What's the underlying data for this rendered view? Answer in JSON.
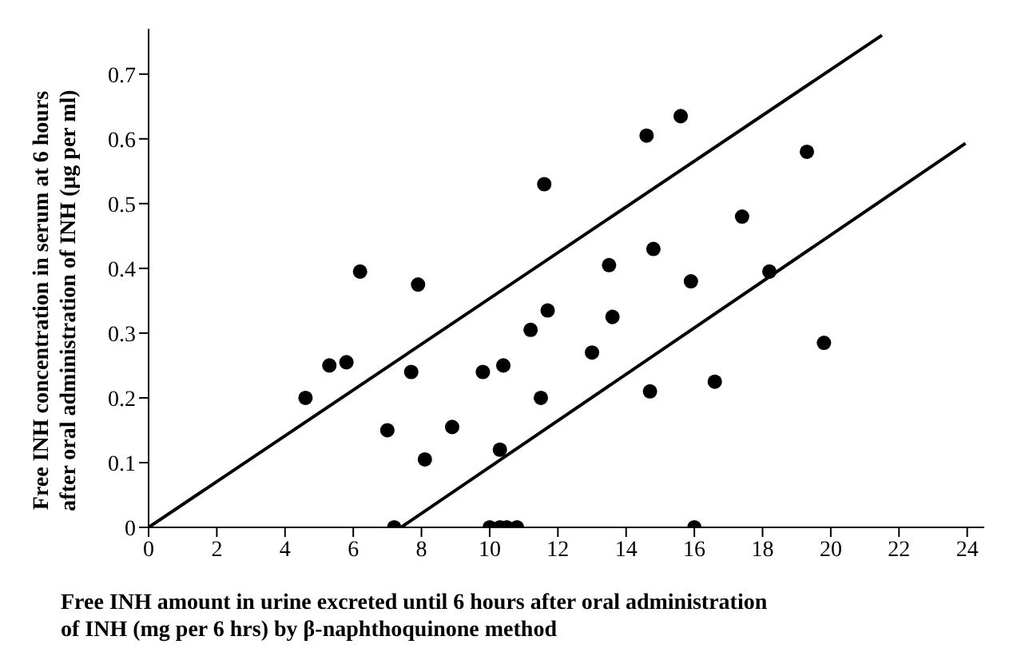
{
  "chart_data": {
    "type": "scatter",
    "xlabel": "Free INH amount in urine excreted until 6 hours after oral administration\nof INH (mg per 6 hrs)  by  β-naphthoquinone method",
    "ylabel": "Free INH concentration in serum at 6 hours\nafter oral administration of INH (μg per ml)",
    "xlim": [
      0,
      24.5
    ],
    "xticks": [
      0,
      2,
      4,
      6,
      8,
      10,
      12,
      14,
      16,
      18,
      20,
      22,
      24
    ],
    "ylim": [
      0,
      0.77
    ],
    "yticks": [
      0,
      0.1,
      0.2,
      0.3,
      0.4,
      0.5,
      0.6,
      0.7
    ],
    "grid": false,
    "series": [
      {
        "marker": "circle",
        "color": "#000000",
        "x": [
          4.6,
          5.3,
          5.8,
          6.2,
          7.0,
          7.2,
          7.7,
          7.9,
          8.1,
          8.9,
          9.8,
          10.3,
          10.4,
          11.2,
          11.5,
          11.6,
          11.7,
          10.0,
          10.3,
          10.5,
          10.8,
          13.0,
          13.5,
          13.6,
          14.6,
          14.7,
          14.8,
          15.6,
          15.9,
          16.6,
          17.4,
          18.2,
          19.3,
          19.8,
          16.0
        ],
        "values": [
          0.2,
          0.25,
          0.255,
          0.395,
          0.15,
          0,
          0.24,
          0.375,
          0.105,
          0.155,
          0.24,
          0.12,
          0.25,
          0.305,
          0.2,
          0.53,
          0.335,
          0,
          0,
          0,
          0,
          0.27,
          0.405,
          0.325,
          0.605,
          0.21,
          0.43,
          0.635,
          0.38,
          0.225,
          0.48,
          0.395,
          0.58,
          0.285,
          0
        ]
      },
      {
        "type": "line",
        "color": "#000000",
        "x": [
          0,
          21.5
        ],
        "values": [
          0,
          0.76
        ]
      },
      {
        "type": "line",
        "color": "#000000",
        "x": [
          7.4,
          23.95
        ],
        "values": [
          0,
          0.593
        ]
      }
    ]
  }
}
